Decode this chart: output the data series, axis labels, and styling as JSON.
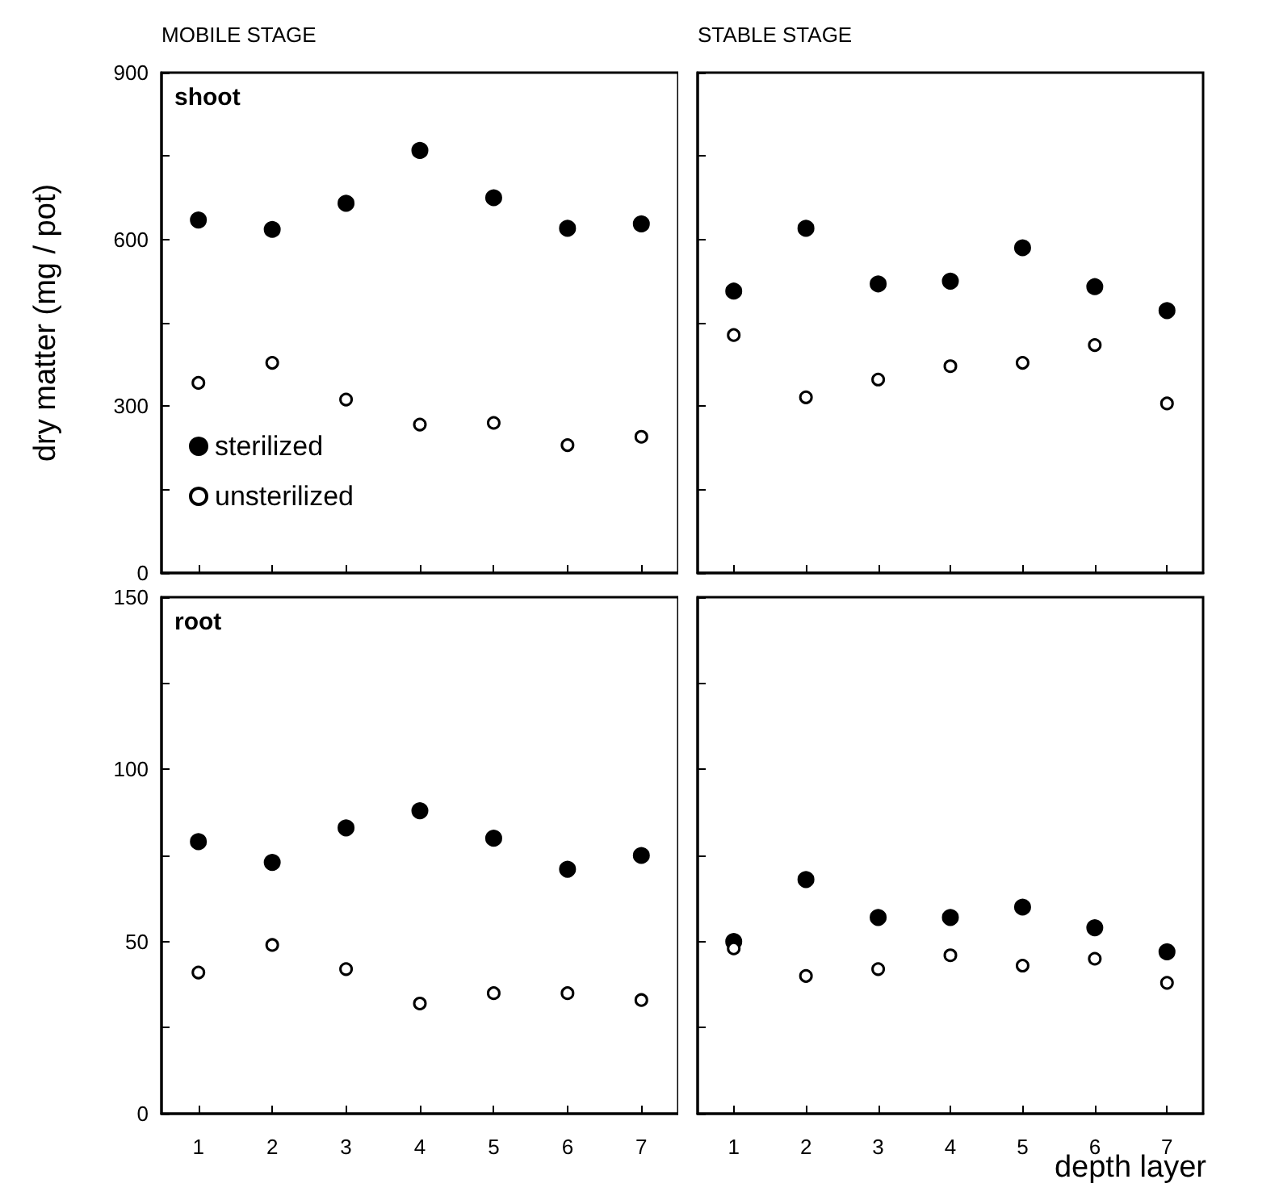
{
  "chart_data": [
    {
      "type": "scatter",
      "title": "MOBILE STAGE",
      "ylabel": "dry matter (mg / pot)",
      "annotations": [
        "shoot"
      ],
      "categories": [
        "1",
        "2",
        "3",
        "4",
        "5",
        "6",
        "7"
      ],
      "ylim": [
        0,
        900
      ],
      "yticks": [
        0,
        {
          "value": 150,
          "label": null
        },
        300,
        {
          "value": 450,
          "label": null
        },
        600,
        {
          "value": 750,
          "label": null
        },
        900
      ],
      "tick_labels": "y",
      "marker": "circle",
      "legend": "bottom left",
      "grid": false,
      "series": [
        {
          "name": "sterilized",
          "color": "#000000",
          "values": [
            635,
            618,
            665,
            760,
            675,
            620,
            628
          ]
        },
        {
          "name": "unsterilized",
          "color": "#ffffff",
          "values": [
            342,
            378,
            312,
            267,
            270,
            230,
            245
          ]
        }
      ]
    },
    {
      "type": "scatter",
      "title": "STABLE STAGE",
      "categories": [
        "1",
        "2",
        "3",
        "4",
        "5",
        "6",
        "7"
      ],
      "ylim": [
        0,
        900
      ],
      "yticks": [
        0,
        {
          "value": 150,
          "label": null
        },
        300,
        {
          "value": 450,
          "label": null
        },
        600,
        {
          "value": 750,
          "label": null
        },
        900
      ],
      "tick_labels": false,
      "marker": "circle",
      "grid": false,
      "series": [
        {
          "color": "#000000",
          "values": [
            507,
            620,
            520,
            525,
            585,
            515,
            472
          ]
        },
        {
          "color": "#ffffff",
          "values": [
            428,
            316,
            348,
            372,
            378,
            410,
            305
          ]
        }
      ]
    },
    {
      "type": "scatter",
      "annotations": [
        "root"
      ],
      "categories": [
        "1",
        "2",
        "3",
        "4",
        "5",
        "6",
        "7"
      ],
      "ylim": [
        0,
        150
      ],
      "yticks": [
        0,
        {
          "value": 25,
          "label": null
        },
        50,
        {
          "value": 75,
          "label": null
        },
        100,
        {
          "value": 125,
          "label": null
        },
        150
      ],
      "marker": "circle",
      "grid": false,
      "series": [
        {
          "color": "#000000",
          "values": [
            79,
            73,
            83,
            88,
            80,
            71,
            75
          ]
        },
        {
          "color": "#ffffff",
          "values": [
            41,
            49,
            42,
            32,
            35,
            35,
            33
          ]
        }
      ]
    },
    {
      "type": "scatter",
      "xlabel": "depth layer",
      "categories": [
        "1",
        "2",
        "3",
        "4",
        "5",
        "6",
        "7"
      ],
      "ylim": [
        0,
        150
      ],
      "yticks": [
        0,
        {
          "value": 25,
          "label": null
        },
        50,
        {
          "value": 75,
          "label": null
        },
        100,
        {
          "value": 125,
          "label": null
        },
        150
      ],
      "tick_labels": "x",
      "marker": "circle",
      "grid": false,
      "series": [
        {
          "color": "#000000",
          "values": [
            50,
            68,
            57,
            57,
            60,
            54,
            47
          ]
        },
        {
          "color": "#ffffff",
          "values": [
            48,
            40,
            42,
            46,
            43,
            45,
            38
          ]
        }
      ]
    }
  ]
}
